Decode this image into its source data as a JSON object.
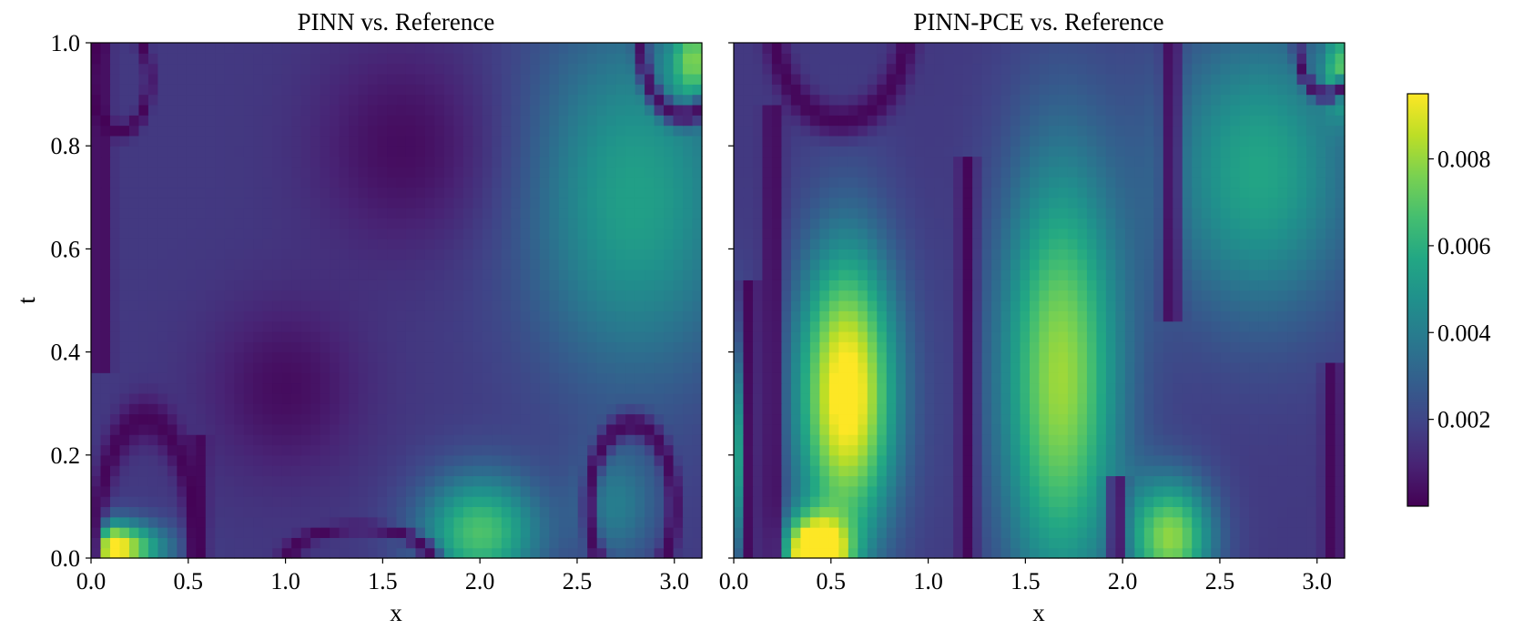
{
  "chart_data": [
    {
      "type": "heatmap",
      "title": "PINN vs. Reference",
      "xlabel": "x",
      "ylabel": "t",
      "xlim": [
        0.0,
        3.1416
      ],
      "ylim": [
        0.0,
        1.0
      ],
      "xticks": [
        0.0,
        0.5,
        1.0,
        1.5,
        2.0,
        2.5,
        3.0
      ],
      "xtick_labels": [
        "0.0",
        "0.5",
        "1.0",
        "1.5",
        "2.0",
        "2.5",
        "3.0"
      ],
      "yticks": [
        0.0,
        0.2,
        0.4,
        0.6,
        0.8,
        1.0
      ],
      "ytick_labels": [
        "0.0",
        "0.2",
        "0.4",
        "0.6",
        "0.8",
        "1.0"
      ],
      "colormap": "viridis",
      "grid": {
        "nx": 64,
        "nt": 50
      },
      "features": [
        {
          "kind": "peak",
          "x": 0.05,
          "t": 0.02,
          "value": 0.0095,
          "sx": 0.2,
          "st": 0.035
        },
        {
          "kind": "peak",
          "x": 2.0,
          "t": 0.05,
          "value": 0.0052,
          "sx": 0.22,
          "st": 0.08
        },
        {
          "kind": "peak",
          "x": 2.8,
          "t": 0.7,
          "value": 0.0038,
          "sx": 0.4,
          "st": 0.25
        },
        {
          "kind": "peak",
          "x": 3.1,
          "t": 0.97,
          "value": 0.0045,
          "sx": 0.08,
          "st": 0.05
        },
        {
          "kind": "peak",
          "x": 2.7,
          "t": 0.1,
          "value": 0.0022,
          "sx": 0.15,
          "st": 0.08
        },
        {
          "kind": "low",
          "x": 1.0,
          "t": 0.33,
          "value": 0.0002,
          "sx": 0.28,
          "st": 0.12
        },
        {
          "kind": "low",
          "x": 1.6,
          "t": 0.8,
          "value": 0.0002,
          "sx": 0.32,
          "st": 0.14
        },
        {
          "kind": "zero_line",
          "shape": "vertical",
          "x": 0.55,
          "t_from": 0.0,
          "t_to": 0.2
        },
        {
          "kind": "zero_line",
          "shape": "vertical",
          "x": 0.05,
          "t_from": 0.4,
          "t_to": 1.0
        },
        {
          "kind": "zero_line",
          "shape": "ring",
          "x": 0.28,
          "t": 0.0,
          "rx": 0.26,
          "rt": 0.27
        },
        {
          "kind": "zero_line",
          "shape": "ring",
          "x": 1.38,
          "t": 0.0,
          "rx": 0.36,
          "rt": 0.06
        },
        {
          "kind": "zero_line",
          "shape": "ring",
          "x": 2.78,
          "t": 0.1,
          "rx": 0.22,
          "rt": 0.16
        },
        {
          "kind": "zero_line",
          "shape": "ring",
          "x": 0.15,
          "t": 0.93,
          "rx": 0.15,
          "rt": 0.1
        },
        {
          "kind": "zero_line",
          "shape": "ring",
          "x": 3.05,
          "t": 1.0,
          "rx": 0.22,
          "rt": 0.14
        }
      ]
    },
    {
      "type": "heatmap",
      "title": "PINN-PCE vs. Reference",
      "xlabel": "x",
      "ylabel": "",
      "xlim": [
        0.0,
        3.1416
      ],
      "ylim": [
        0.0,
        1.0
      ],
      "xticks": [
        0.0,
        0.5,
        1.0,
        1.5,
        2.0,
        2.5,
        3.0
      ],
      "xtick_labels": [
        "0.0",
        "0.5",
        "1.0",
        "1.5",
        "2.0",
        "2.5",
        "3.0"
      ],
      "yticks": [
        0.0,
        0.2,
        0.4,
        0.6,
        0.8,
        1.0
      ],
      "ytick_labels": [],
      "colormap": "viridis",
      "grid": {
        "nx": 64,
        "nt": 50
      },
      "features": [
        {
          "kind": "peak",
          "x": 0.58,
          "t": 0.32,
          "value": 0.0085,
          "sx": 0.18,
          "st": 0.2
        },
        {
          "kind": "peak",
          "x": 0.42,
          "t": 0.01,
          "value": 0.0095,
          "sx": 0.12,
          "st": 0.05
        },
        {
          "kind": "peak",
          "x": 1.68,
          "t": 0.35,
          "value": 0.0065,
          "sx": 0.22,
          "st": 0.3
        },
        {
          "kind": "peak",
          "x": 2.25,
          "t": 0.04,
          "value": 0.0062,
          "sx": 0.15,
          "st": 0.08
        },
        {
          "kind": "peak",
          "x": 2.7,
          "t": 0.75,
          "value": 0.004,
          "sx": 0.35,
          "st": 0.2
        },
        {
          "kind": "peak",
          "x": 0.02,
          "t": 0.2,
          "value": 0.0055,
          "sx": 0.04,
          "st": 0.15
        },
        {
          "kind": "peak",
          "x": 3.12,
          "t": 0.95,
          "value": 0.0042,
          "sx": 0.06,
          "st": 0.06
        },
        {
          "kind": "zero_line",
          "shape": "vertical",
          "x": 0.08,
          "t_from": 0.0,
          "t_to": 0.5
        },
        {
          "kind": "zero_line",
          "shape": "vertical",
          "x": 0.2,
          "t_from": 0.0,
          "t_to": 0.85
        },
        {
          "kind": "zero_line",
          "shape": "vertical",
          "x": 1.2,
          "t_from": 0.0,
          "t_to": 0.75
        },
        {
          "kind": "zero_line",
          "shape": "vertical",
          "x": 1.97,
          "t_from": 0.0,
          "t_to": 0.12
        },
        {
          "kind": "zero_line",
          "shape": "vertical",
          "x": 2.25,
          "t_from": 0.5,
          "t_to": 1.0
        },
        {
          "kind": "zero_line",
          "shape": "vertical",
          "x": 3.08,
          "t_from": 0.0,
          "t_to": 0.35
        },
        {
          "kind": "zero_line",
          "shape": "ring",
          "x": 0.55,
          "t": 1.05,
          "rx": 0.35,
          "rt": 0.2
        },
        {
          "kind": "zero_line",
          "shape": "ring",
          "x": 3.05,
          "t": 1.0,
          "rx": 0.15,
          "rt": 0.1
        }
      ]
    }
  ],
  "colorbar": {
    "colormap": "viridis",
    "vmin": 0.0,
    "vmax": 0.0095,
    "ticks": [
      0.002,
      0.004,
      0.006,
      0.008
    ],
    "tick_labels": [
      "0.002",
      "0.004",
      "0.006",
      "0.008"
    ]
  }
}
